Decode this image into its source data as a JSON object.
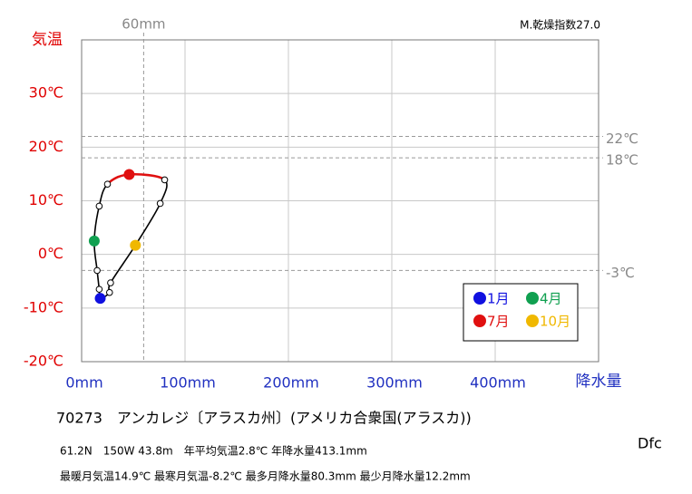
{
  "chart_data": {
    "type": "climograph",
    "y_label": "気温",
    "x_label": "降水量",
    "index_label": "M.乾燥指数27.0",
    "categories": [
      "1月",
      null,
      null,
      "4月",
      null,
      null,
      "7月",
      null,
      null,
      "10月",
      null,
      null
    ],
    "colors": [
      "#1010e0",
      null,
      null,
      "#10a050",
      null,
      null,
      "#e01010",
      null,
      null,
      "#f0b800",
      null,
      null
    ],
    "line_color": "#000000",
    "highlight_color": "#e01010",
    "x": [
      18,
      17,
      15,
      12.2,
      17,
      25,
      46,
      80.3,
      76,
      52,
      28,
      27
    ],
    "values": [
      -8.2,
      -6.5,
      -3,
      2.5,
      9,
      13.1,
      14.9,
      13.9,
      9.5,
      1.7,
      -5.3,
      -7.1
    ],
    "xlim": [
      0,
      500
    ],
    "ylim": [
      -20,
      40
    ],
    "xticks": [
      {
        "value": 0,
        "label": "0mm"
      },
      {
        "value": 100,
        "label": "100mm"
      },
      {
        "value": 200,
        "label": "200mm"
      },
      {
        "value": 300,
        "label": "300mm"
      },
      {
        "value": 400,
        "label": "400mm"
      }
    ],
    "yticks": [
      {
        "value": -20,
        "label": "-20℃"
      },
      {
        "value": -10,
        "label": "-10℃"
      },
      {
        "value": 0,
        "label": "0℃"
      },
      {
        "value": 10,
        "label": "10℃"
      },
      {
        "value": 20,
        "label": "20℃"
      },
      {
        "value": 30,
        "label": "30℃"
      }
    ],
    "grid": true,
    "x_reference": [
      {
        "value": 60,
        "label": "60mm"
      }
    ],
    "y_reference": [
      {
        "value": 22,
        "label": "22℃"
      },
      {
        "value": 18,
        "label": "18℃"
      },
      {
        "value": -3,
        "label": "-3℃"
      }
    ],
    "station": "70273　アンカレジ〔アラスカ州〕(アメリカ合衆国(アラスカ))",
    "info1": "61.2N　150W 43.8m　年平均気温2.8℃ 年降水量413.1mm",
    "info2": "最暖月気温14.9℃ 最寒月気温-8.2℃ 最多月降水量80.3mm 最少月降水量12.2mm",
    "climate": "Dfc"
  }
}
